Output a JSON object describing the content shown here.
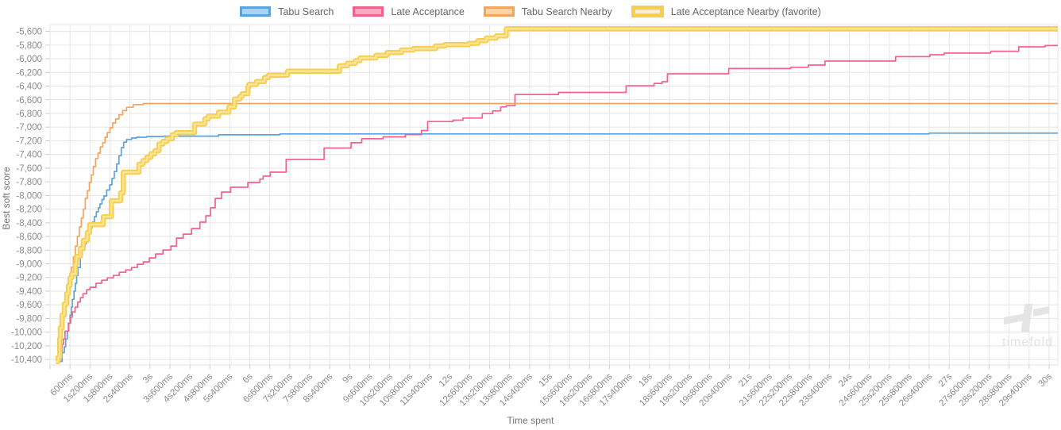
{
  "legend": {
    "items": [
      {
        "label": "Tabu Search",
        "fill": "#a8d4f3",
        "stroke": "#5ba3da",
        "thick": false
      },
      {
        "label": "Late Acceptance",
        "fill": "#f9abc4",
        "stroke": "#f2638c",
        "thick": false
      },
      {
        "label": "Tabu Search Nearby",
        "fill": "#fbd4a5",
        "stroke": "#f4a45c",
        "thick": false
      },
      {
        "label": "Late Acceptance Nearby (favorite)",
        "fill": "#fdf0c6",
        "stroke": "#f6cf50",
        "thick": true
      }
    ]
  },
  "axes": {
    "x_title": "Time spent",
    "y_title": "Best soft score"
  },
  "watermark": {
    "brand": "timefold"
  },
  "colors": {
    "grid": "#e6e6e6",
    "tick": "#cccccc",
    "tick_text": "#8a8a8a"
  },
  "chart_data": {
    "type": "line",
    "subtype": "step-after",
    "title": "",
    "xlabel": "Time spent",
    "ylabel": "Best soft score",
    "grid": true,
    "legend_position": "top",
    "x_tick_interval_s": 0.6,
    "x_max_s": 30,
    "ylim": [
      -10480,
      -5500
    ],
    "y_tick_start": -5600,
    "y_tick_step": -200,
    "x_tick_labels": [
      "600ms",
      "1s200ms",
      "1s800ms",
      "2s400ms",
      "3s",
      "3s600ms",
      "4s200ms",
      "4s800ms",
      "5s400ms",
      "6s",
      "6s600ms",
      "7s200ms",
      "7s800ms",
      "8s400ms",
      "9s",
      "9s600ms",
      "10s200ms",
      "10s800ms",
      "11s400ms",
      "12s",
      "12s600ms",
      "13s200ms",
      "13s800ms",
      "14s400ms",
      "15s",
      "15s600ms",
      "16s200ms",
      "16s800ms",
      "17s400ms",
      "18s",
      "18s600ms",
      "19s200ms",
      "19s800ms",
      "20s400ms",
      "21s",
      "21s600ms",
      "22s200ms",
      "22s800ms",
      "23s400ms",
      "24s",
      "24s600ms",
      "25s200ms",
      "25s800ms",
      "26s400ms",
      "27s",
      "27s600ms",
      "28s200ms",
      "28s800ms",
      "29s400ms",
      "30s"
    ],
    "y_tick_labels": [
      "-5,600",
      "-5,800",
      "-6,000",
      "-6,200",
      "-6,400",
      "-6,600",
      "-6,800",
      "-7,000",
      "-7,200",
      "-7,400",
      "-7,600",
      "-7,800",
      "-8,000",
      "-8,200",
      "-8,400",
      "-8,600",
      "-8,800",
      "-9,000",
      "-9,200",
      "-9,400",
      "-9,600",
      "-9,800",
      "-10,000",
      "-10,200",
      "-10,400"
    ],
    "series": [
      {
        "name": "Tabu Search",
        "color": "#5ba3da",
        "width": 1.7,
        "points": [
          [
            0.3,
            -10430
          ],
          [
            0.36,
            -10300
          ],
          [
            0.43,
            -10217
          ],
          [
            0.47,
            -10100
          ],
          [
            0.52,
            -9984
          ],
          [
            0.56,
            -9870
          ],
          [
            0.6,
            -9751
          ],
          [
            0.64,
            -9635
          ],
          [
            0.67,
            -9519
          ],
          [
            0.72,
            -9400
          ],
          [
            0.76,
            -9286
          ],
          [
            0.8,
            -9170
          ],
          [
            0.84,
            -9054
          ],
          [
            0.91,
            -8891
          ],
          [
            0.97,
            -8800
          ],
          [
            1.03,
            -8705
          ],
          [
            1.09,
            -8620
          ],
          [
            1.15,
            -8542
          ],
          [
            1.21,
            -8470
          ],
          [
            1.27,
            -8391
          ],
          [
            1.33,
            -8310
          ],
          [
            1.39,
            -8240
          ],
          [
            1.45,
            -8180
          ],
          [
            1.5,
            -8124
          ],
          [
            1.56,
            -8060
          ],
          [
            1.62,
            -8007
          ],
          [
            1.7,
            -7920
          ],
          [
            1.79,
            -7845
          ],
          [
            1.86,
            -7750
          ],
          [
            1.93,
            -7650
          ],
          [
            2,
            -7540
          ],
          [
            2.07,
            -7420
          ],
          [
            2.14,
            -7300
          ],
          [
            2.21,
            -7220
          ],
          [
            2.3,
            -7180
          ],
          [
            2.45,
            -7160
          ],
          [
            2.6,
            -7148
          ],
          [
            2.9,
            -7138
          ],
          [
            3.4,
            -7132
          ],
          [
            5.06,
            -7112
          ],
          [
            6.9,
            -7100
          ],
          [
            26.4,
            -7088
          ]
        ]
      },
      {
        "name": "Late Acceptance",
        "color": "#f2638c",
        "width": 1.7,
        "points": [
          [
            0.25,
            -10430
          ],
          [
            0.3,
            -10287
          ],
          [
            0.36,
            -10180
          ],
          [
            0.4,
            -10100
          ],
          [
            0.45,
            -9984
          ],
          [
            0.55,
            -9868
          ],
          [
            0.62,
            -9780
          ],
          [
            0.67,
            -9705
          ],
          [
            0.75,
            -9635
          ],
          [
            0.83,
            -9560
          ],
          [
            0.91,
            -9496
          ],
          [
            0.99,
            -9438
          ],
          [
            1.1,
            -9379
          ],
          [
            1.2,
            -9344
          ],
          [
            1.38,
            -9286
          ],
          [
            1.55,
            -9240
          ],
          [
            1.72,
            -9205
          ],
          [
            1.9,
            -9170
          ],
          [
            2.08,
            -9124
          ],
          [
            2.27,
            -9089
          ],
          [
            2.45,
            -9054
          ],
          [
            2.62,
            -9007
          ],
          [
            2.8,
            -8972
          ],
          [
            2.98,
            -8914
          ],
          [
            3.17,
            -8856
          ],
          [
            3.39,
            -8798
          ],
          [
            3.63,
            -8740
          ],
          [
            3.8,
            -8624
          ],
          [
            4,
            -8566
          ],
          [
            4.25,
            -8484
          ],
          [
            4.5,
            -8391
          ],
          [
            4.68,
            -8298
          ],
          [
            4.82,
            -8180
          ],
          [
            4.96,
            -8043
          ],
          [
            5.15,
            -7950
          ],
          [
            5.42,
            -7880
          ],
          [
            5.94,
            -7810
          ],
          [
            6.3,
            -7760
          ],
          [
            6.4,
            -7717
          ],
          [
            6.61,
            -7659
          ],
          [
            7.09,
            -7473
          ],
          [
            8.23,
            -7306
          ],
          [
            9.04,
            -7228
          ],
          [
            9.36,
            -7170
          ],
          [
            10,
            -7143
          ],
          [
            10.67,
            -7110
          ],
          [
            11.15,
            -7050
          ],
          [
            11.34,
            -6918
          ],
          [
            12.1,
            -6899
          ],
          [
            12.4,
            -6868
          ],
          [
            12.98,
            -6802
          ],
          [
            13.29,
            -6763
          ],
          [
            13.53,
            -6705
          ],
          [
            13.7,
            -6686
          ],
          [
            13.96,
            -6523
          ],
          [
            15.27,
            -6492
          ],
          [
            17.3,
            -6395
          ],
          [
            18.14,
            -6360
          ],
          [
            18.38,
            -6336
          ],
          [
            18.54,
            -6220
          ],
          [
            20.38,
            -6143
          ],
          [
            22.24,
            -6124
          ],
          [
            22.77,
            -6092
          ],
          [
            23.27,
            -6034
          ],
          [
            25.39,
            -5969
          ],
          [
            26.42,
            -5941
          ],
          [
            26.85,
            -5917
          ],
          [
            28.25,
            -5890
          ],
          [
            29.09,
            -5825
          ],
          [
            29.88,
            -5806
          ]
        ]
      },
      {
        "name": "Tabu Search Nearby",
        "color": "#f4a45c",
        "width": 1.7,
        "points": [
          [
            0.2,
            -10430
          ],
          [
            0.24,
            -10250
          ],
          [
            0.28,
            -10100
          ],
          [
            0.31,
            -9984
          ],
          [
            0.36,
            -9800
          ],
          [
            0.41,
            -9650
          ],
          [
            0.48,
            -9500
          ],
          [
            0.53,
            -9350
          ],
          [
            0.58,
            -9205
          ],
          [
            0.64,
            -9050
          ],
          [
            0.7,
            -8900
          ],
          [
            0.76,
            -8740
          ],
          [
            0.82,
            -8600
          ],
          [
            0.88,
            -8460
          ],
          [
            0.94,
            -8330
          ],
          [
            1,
            -8200
          ],
          [
            1.06,
            -8042
          ],
          [
            1.12,
            -7930
          ],
          [
            1.18,
            -7810
          ],
          [
            1.24,
            -7700
          ],
          [
            1.3,
            -7577
          ],
          [
            1.37,
            -7460
          ],
          [
            1.44,
            -7380
          ],
          [
            1.51,
            -7290
          ],
          [
            1.58,
            -7229
          ],
          [
            1.65,
            -7150
          ],
          [
            1.72,
            -7080
          ],
          [
            1.8,
            -7010
          ],
          [
            1.88,
            -6940
          ],
          [
            1.97,
            -6880
          ],
          [
            2.07,
            -6820
          ],
          [
            2.18,
            -6760
          ],
          [
            2.3,
            -6710
          ],
          [
            2.5,
            -6670
          ],
          [
            2.8,
            -6655
          ]
        ]
      },
      {
        "name": "Late Acceptance Nearby (favorite)",
        "color": "#f6cf50",
        "inner_color": "#fbe497",
        "width": 6.5,
        "favorite": true,
        "points": [
          [
            0.18,
            -10430
          ],
          [
            0.24,
            -10368
          ],
          [
            0.29,
            -10100
          ],
          [
            0.31,
            -9938
          ],
          [
            0.36,
            -9751
          ],
          [
            0.43,
            -9589
          ],
          [
            0.5,
            -9438
          ],
          [
            0.55,
            -9321
          ],
          [
            0.6,
            -9205
          ],
          [
            0.65,
            -9147
          ],
          [
            0.76,
            -9007
          ],
          [
            0.79,
            -8891
          ],
          [
            0.91,
            -8775
          ],
          [
            1,
            -8658
          ],
          [
            1.12,
            -8542
          ],
          [
            1.19,
            -8426
          ],
          [
            1.6,
            -8310
          ],
          [
            1.84,
            -8078
          ],
          [
            2.12,
            -7961
          ],
          [
            2.2,
            -7659
          ],
          [
            2.67,
            -7542
          ],
          [
            2.79,
            -7490
          ],
          [
            2.91,
            -7440
          ],
          [
            3.03,
            -7390
          ],
          [
            3.15,
            -7345
          ],
          [
            3.27,
            -7248
          ],
          [
            3.39,
            -7209
          ],
          [
            3.51,
            -7170
          ],
          [
            3.67,
            -7112
          ],
          [
            3.79,
            -7081
          ],
          [
            4.34,
            -6957
          ],
          [
            4.65,
            -6879
          ],
          [
            4.75,
            -6840
          ],
          [
            5.06,
            -6782
          ],
          [
            5.37,
            -6705
          ],
          [
            5.54,
            -6589
          ],
          [
            5.7,
            -6550
          ],
          [
            5.77,
            -6511
          ],
          [
            5.94,
            -6414
          ],
          [
            5.97,
            -6375
          ],
          [
            6.2,
            -6333
          ],
          [
            6.44,
            -6275
          ],
          [
            6.56,
            -6240
          ],
          [
            7.13,
            -6182
          ],
          [
            8.69,
            -6104
          ],
          [
            8.93,
            -6066
          ],
          [
            9.17,
            -6027
          ],
          [
            9.31,
            -5988
          ],
          [
            9.79,
            -5949
          ],
          [
            10.12,
            -5910
          ],
          [
            10.55,
            -5871
          ],
          [
            10.91,
            -5852
          ],
          [
            11.58,
            -5813
          ],
          [
            11.86,
            -5793
          ],
          [
            12.58,
            -5774
          ],
          [
            12.85,
            -5736
          ],
          [
            13.1,
            -5697
          ],
          [
            13.4,
            -5666
          ],
          [
            13.7,
            -5560
          ]
        ]
      }
    ]
  }
}
